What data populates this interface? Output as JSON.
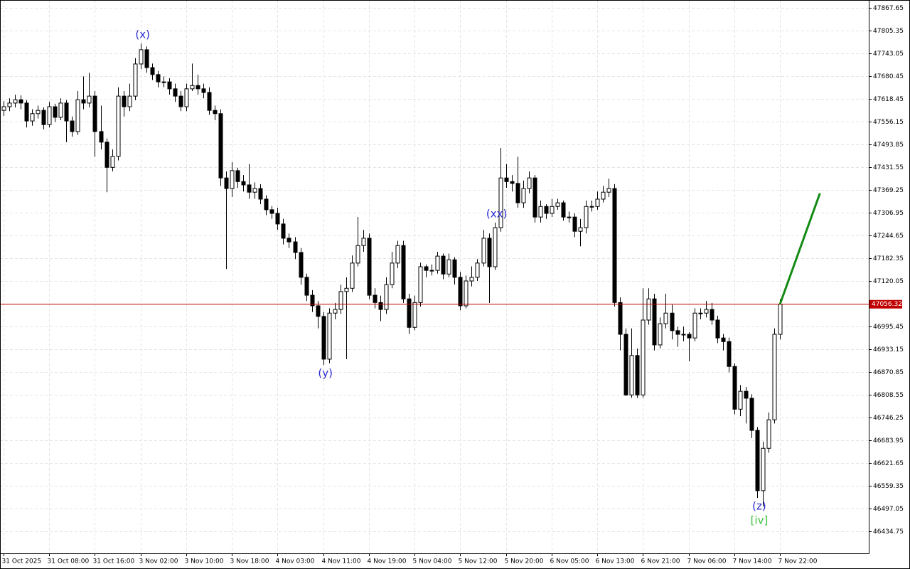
{
  "chart_data": {
    "type": "candlestick",
    "ylim": [
      46374.4,
      47889.1
    ],
    "yticks": [
      47867.65,
      47805.35,
      47743.05,
      47680.45,
      47618.45,
      47556.15,
      47493.85,
      47431.55,
      47369.25,
      47306.95,
      47244.65,
      47182.35,
      47120.05,
      46995.45,
      46933.15,
      46870.85,
      46808.55,
      46746.25,
      46683.95,
      46621.65,
      46559.35,
      46497.05,
      46434.75
    ],
    "xticks": [
      {
        "value": 0,
        "label": "31 Oct 2025"
      },
      {
        "value": 8,
        "label": "31 Oct 08:00"
      },
      {
        "value": 16,
        "label": "31 Oct 16:00"
      },
      {
        "value": 24,
        "label": "3 Nov 02:00"
      },
      {
        "value": 32,
        "label": "3 Nov 10:00"
      },
      {
        "value": 40,
        "label": "3 Nov 18:00"
      },
      {
        "value": 48,
        "label": "4 Nov 03:00"
      },
      {
        "value": 56,
        "label": "4 Nov 11:00"
      },
      {
        "value": 64,
        "label": "4 Nov 19:00"
      },
      {
        "value": 72,
        "label": "5 Nov 04:00"
      },
      {
        "value": 80,
        "label": "5 Nov 12:00"
      },
      {
        "value": 88,
        "label": "5 Nov 20:00"
      },
      {
        "value": 96,
        "label": "6 Nov 05:00"
      },
      {
        "value": 104,
        "label": "6 Nov 13:00"
      },
      {
        "value": 112,
        "label": "6 Nov 21:00"
      },
      {
        "value": 120,
        "label": "7 Nov 06:00"
      },
      {
        "value": 128,
        "label": "7 Nov 14:00"
      },
      {
        "value": 136,
        "label": "7 Nov 22:00"
      }
    ],
    "grid": true,
    "up_color": "#ffffff",
    "down_color": "#000000",
    "open": [
      47587,
      47597,
      47607,
      47616,
      47607,
      47558,
      47578,
      47587,
      47548,
      47597,
      47568,
      47607,
      47558,
      47529,
      47616,
      47607,
      47626,
      47529,
      47500,
      47431,
      47461,
      47626,
      47597,
      47626,
      47714,
      47753,
      47704,
      47685,
      47665,
      47665,
      47646,
      47626,
      47597,
      47646,
      47655,
      47646,
      47636,
      47587,
      47578,
      47402,
      47373,
      47422,
      47392,
      47383,
      47363,
      47373,
      47344,
      47315,
      47305,
      47276,
      47237,
      47227,
      47198,
      47130,
      47081,
      47052,
      47023,
      46906,
      47032,
      47042,
      47091,
      47100,
      47169,
      47217,
      47237,
      47081,
      47061,
      47042,
      47110,
      47169,
      47217,
      47071,
      46993,
      47061,
      47159,
      47149,
      47149,
      47188,
      47139,
      47178,
      47130,
      47052,
      47120,
      47130,
      47169,
      47237,
      47159,
      47266,
      47402,
      47392,
      47387,
      47334,
      47373,
      47402,
      47295,
      47324,
      47305,
      47324,
      47334,
      47295,
      47295,
      47256,
      47266,
      47324,
      47324,
      47344,
      47363,
      47373,
      47061,
      46974,
      46808,
      46916,
      46808,
      47013,
      47071,
      46945,
      47003,
      47032,
      46984,
      46974,
      46974,
      46964,
      47032,
      47032,
      47042,
      47013,
      46964,
      46954,
      46886,
      46769,
      46818,
      46799,
      46711,
      46546,
      46662,
      46740,
      46974
    ],
    "high": [
      47612,
      47620,
      47630,
      47628,
      47615,
      47590,
      47600,
      47595,
      47610,
      47605,
      47620,
      47615,
      47570,
      47640,
      47680,
      47690,
      47640,
      47600,
      47510,
      47480,
      47650,
      47640,
      47660,
      47730,
      47770,
      47762,
      47715,
      47695,
      47680,
      47675,
      47660,
      47640,
      47660,
      47715,
      47685,
      47660,
      47650,
      47600,
      47590,
      47420,
      47445,
      47430,
      47410,
      47440,
      47390,
      47385,
      47355,
      47325,
      47320,
      47290,
      47250,
      47240,
      47210,
      47140,
      47095,
      47065,
      47035,
      47045,
      47060,
      47110,
      47130,
      47190,
      47295,
      47260,
      47250,
      47100,
      47080,
      47130,
      47200,
      47230,
      47230,
      47085,
      47080,
      47170,
      47165,
      47165,
      47200,
      47195,
      47195,
      47185,
      47145,
      47135,
      47160,
      47180,
      47260,
      47250,
      47280,
      47484,
      47440,
      47410,
      47460,
      47395,
      47420,
      47410,
      47340,
      47330,
      47345,
      47345,
      47340,
      47310,
      47305,
      47290,
      47340,
      47340,
      47365,
      47380,
      47400,
      47385,
      47075,
      46990,
      46990,
      46935,
      47100,
      47100,
      47085,
      47020,
      47085,
      47055,
      46995,
      46995,
      46980,
      47045,
      47045,
      47065,
      47060,
      47025,
      46975,
      46965,
      46895,
      46835,
      46830,
      46810,
      46720,
      46680,
      46760,
      46990,
      47070
    ],
    "low": [
      47572,
      47585,
      47595,
      47590,
      47540,
      47545,
      47565,
      47535,
      47540,
      47555,
      47560,
      47500,
      47515,
      47520,
      47590,
      47595,
      47460,
      47480,
      47363,
      47420,
      47450,
      47570,
      47585,
      47615,
      47700,
      47690,
      47670,
      47650,
      47650,
      47630,
      47610,
      47585,
      47585,
      47640,
      47630,
      47620,
      47575,
      47560,
      47380,
      47153,
      47350,
      47375,
      47365,
      47345,
      47345,
      47330,
      47300,
      47290,
      47260,
      47220,
      47210,
      47180,
      47110,
      47065,
      47035,
      46990,
      46890,
      46895,
      47015,
      47030,
      46906,
      47090,
      47160,
      47200,
      47070,
      47045,
      47010,
      47030,
      47100,
      47155,
      47060,
      46975,
      46985,
      47050,
      47130,
      47135,
      47140,
      47125,
      47130,
      47110,
      47040,
      47045,
      47105,
      47120,
      47160,
      47060,
      47150,
      47255,
      47375,
      47365,
      47320,
      47320,
      47360,
      47280,
      47280,
      47290,
      47295,
      47315,
      47285,
      47280,
      47240,
      47215,
      47250,
      47310,
      47315,
      47335,
      47350,
      47050,
      46930,
      46805,
      46800,
      46800,
      46800,
      47000,
      46930,
      46935,
      46990,
      46960,
      46940,
      46955,
      46900,
      46955,
      47015,
      47020,
      47000,
      46950,
      46930,
      46870,
      46755,
      46750,
      46730,
      46690,
      46526,
      46503,
      46650,
      46730,
      46960
    ],
    "close": [
      47597,
      47607,
      47616,
      47607,
      47558,
      47578,
      47587,
      47548,
      47597,
      47568,
      47607,
      47558,
      47529,
      47616,
      47607,
      47626,
      47529,
      47500,
      47431,
      47461,
      47626,
      47597,
      47626,
      47714,
      47753,
      47704,
      47685,
      47665,
      47665,
      47646,
      47626,
      47597,
      47646,
      47655,
      47646,
      47636,
      47587,
      47578,
      47402,
      47373,
      47422,
      47392,
      47383,
      47363,
      47373,
      47344,
      47315,
      47305,
      47276,
      47237,
      47227,
      47198,
      47130,
      47081,
      47052,
      47023,
      46906,
      47032,
      47042,
      47091,
      47100,
      47169,
      47217,
      47237,
      47081,
      47061,
      47042,
      47110,
      47169,
      47217,
      47071,
      46993,
      47061,
      47159,
      47149,
      47149,
      47188,
      47139,
      47178,
      47130,
      47052,
      47120,
      47130,
      47169,
      47237,
      47159,
      47266,
      47402,
      47392,
      47387,
      47334,
      47373,
      47402,
      47295,
      47324,
      47305,
      47324,
      47334,
      47295,
      47295,
      47256,
      47266,
      47324,
      47324,
      47344,
      47363,
      47373,
      47061,
      46974,
      46808,
      46916,
      46808,
      47013,
      47071,
      46945,
      47003,
      47032,
      46984,
      46974,
      46974,
      46964,
      47032,
      47032,
      47042,
      47013,
      46964,
      46954,
      46886,
      46769,
      46818,
      46799,
      46711,
      46546,
      46662,
      46740,
      46974,
      47056.32
    ],
    "price_line": {
      "value": 47056.32,
      "color": "#c00000"
    },
    "forecast": {
      "x": [
        136,
        143
      ],
      "values": [
        47056.32,
        47360
      ],
      "color": "#138a13"
    },
    "annotations": [
      {
        "text": "(x)",
        "index": 24,
        "at": "high",
        "color": "#2a2ad0"
      },
      {
        "text": "(xx)",
        "index": 86,
        "at": "high",
        "color": "#2a2ad0"
      },
      {
        "text": "(y)",
        "index": 56,
        "at": "low",
        "color": "#2a2ad0"
      },
      {
        "text": "(z)",
        "index": 132,
        "at": "low",
        "color": "#2a2ad0"
      },
      {
        "text": "[iv]",
        "index": 132,
        "at": "low",
        "color": "#3cc03c"
      }
    ]
  }
}
